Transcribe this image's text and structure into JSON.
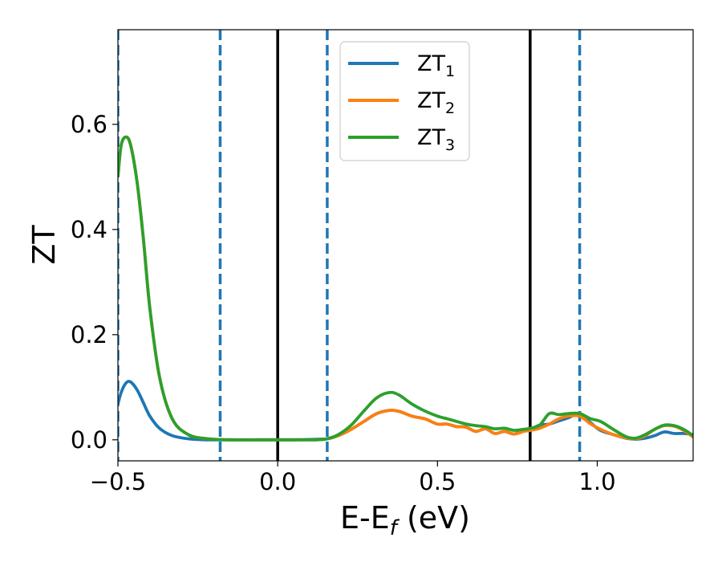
{
  "chart_data": {
    "type": "line",
    "xlabel": {
      "main": "E-E",
      "sub": "f",
      "unit": " (eV)"
    },
    "ylabel": "ZT",
    "xlim": [
      -0.5,
      1.3
    ],
    "ylim": [
      -0.04,
      0.78
    ],
    "xticks": [
      {
        "value": -0.5,
        "label": "−0.5"
      },
      {
        "value": 0.0,
        "label": "0.0"
      },
      {
        "value": 0.5,
        "label": "0.5"
      },
      {
        "value": 1.0,
        "label": "1.0"
      }
    ],
    "yticks": [
      {
        "value": 0.0,
        "label": "0.0"
      },
      {
        "value": 0.2,
        "label": "0.2"
      },
      {
        "value": 0.4,
        "label": "0.4"
      },
      {
        "value": 0.6,
        "label": "0.6"
      }
    ],
    "legend": {
      "placement": "upper-center"
    },
    "vlines_solid": [
      0.0,
      0.79
    ],
    "vlines_dashed": [
      -0.5,
      -0.18,
      0.155,
      0.945
    ],
    "series": [
      {
        "name": "ZT",
        "sub": "1",
        "color": "#1f77b4",
        "x": [
          -0.5,
          -0.49,
          -0.475,
          -0.46,
          -0.44,
          -0.42,
          -0.4,
          -0.37,
          -0.33,
          -0.28,
          -0.22,
          -0.15,
          -0.05,
          0.05,
          0.12,
          0.155,
          0.19,
          0.23,
          0.27,
          0.31,
          0.35,
          0.38,
          0.42,
          0.46,
          0.5,
          0.53,
          0.56,
          0.59,
          0.62,
          0.65,
          0.68,
          0.71,
          0.74,
          0.77,
          0.79,
          0.82,
          0.85,
          0.88,
          0.91,
          0.945,
          0.98,
          1.01,
          1.05,
          1.09,
          1.12,
          1.15,
          1.18,
          1.21,
          1.24,
          1.27,
          1.3
        ],
        "y": [
          0.068,
          0.09,
          0.108,
          0.11,
          0.095,
          0.07,
          0.045,
          0.022,
          0.008,
          0.002,
          0.0,
          0.0,
          0.0,
          0.0,
          0.001,
          0.002,
          0.008,
          0.02,
          0.035,
          0.05,
          0.056,
          0.054,
          0.045,
          0.04,
          0.03,
          0.03,
          0.025,
          0.024,
          0.016,
          0.021,
          0.012,
          0.016,
          0.011,
          0.019,
          0.02,
          0.028,
          0.03,
          0.036,
          0.042,
          0.05,
          0.032,
          0.018,
          0.01,
          0.003,
          0.001,
          0.003,
          0.008,
          0.015,
          0.012,
          0.012,
          0.01
        ]
      },
      {
        "name": "ZT",
        "sub": "2",
        "color": "#ff7f0e",
        "x": [
          -0.5,
          -0.49,
          -0.475,
          -0.46,
          -0.44,
          -0.42,
          -0.4,
          -0.37,
          -0.33,
          -0.28,
          -0.22,
          -0.15,
          -0.05,
          0.05,
          0.12,
          0.155,
          0.19,
          0.23,
          0.27,
          0.31,
          0.35,
          0.38,
          0.42,
          0.46,
          0.5,
          0.53,
          0.56,
          0.59,
          0.62,
          0.65,
          0.68,
          0.71,
          0.74,
          0.77,
          0.79,
          0.82,
          0.85,
          0.88,
          0.91,
          0.945,
          0.98,
          1.01,
          1.05,
          1.09,
          1.12,
          1.15,
          1.18,
          1.21,
          1.24,
          1.27,
          1.3
        ],
        "y": [
          0.5,
          0.56,
          0.576,
          0.56,
          0.49,
          0.38,
          0.25,
          0.12,
          0.04,
          0.01,
          0.002,
          0.0,
          0.0,
          0.0,
          0.0,
          0.002,
          0.008,
          0.02,
          0.035,
          0.05,
          0.056,
          0.054,
          0.045,
          0.04,
          0.03,
          0.03,
          0.025,
          0.024,
          0.016,
          0.021,
          0.012,
          0.016,
          0.011,
          0.016,
          0.018,
          0.022,
          0.03,
          0.04,
          0.045,
          0.045,
          0.03,
          0.02,
          0.01,
          0.004,
          0.002,
          0.008,
          0.02,
          0.027,
          0.026,
          0.018,
          0.005
        ]
      },
      {
        "name": "ZT",
        "sub": "3",
        "color": "#2ca02c",
        "x": [
          -0.5,
          -0.49,
          -0.475,
          -0.46,
          -0.44,
          -0.42,
          -0.4,
          -0.37,
          -0.33,
          -0.28,
          -0.22,
          -0.15,
          -0.05,
          0.05,
          0.12,
          0.155,
          0.19,
          0.23,
          0.27,
          0.31,
          0.35,
          0.38,
          0.42,
          0.46,
          0.5,
          0.53,
          0.56,
          0.59,
          0.62,
          0.65,
          0.68,
          0.71,
          0.74,
          0.77,
          0.79,
          0.82,
          0.85,
          0.88,
          0.91,
          0.945,
          0.98,
          1.01,
          1.05,
          1.09,
          1.12,
          1.15,
          1.18,
          1.21,
          1.24,
          1.27,
          1.3
        ],
        "y": [
          0.5,
          0.56,
          0.576,
          0.56,
          0.49,
          0.38,
          0.25,
          0.12,
          0.04,
          0.01,
          0.002,
          0.0,
          0.0,
          0.0,
          0.0,
          0.002,
          0.01,
          0.028,
          0.055,
          0.08,
          0.09,
          0.085,
          0.068,
          0.055,
          0.045,
          0.04,
          0.035,
          0.03,
          0.027,
          0.025,
          0.021,
          0.022,
          0.018,
          0.02,
          0.022,
          0.028,
          0.05,
          0.048,
          0.05,
          0.05,
          0.04,
          0.035,
          0.02,
          0.006,
          0.003,
          0.01,
          0.02,
          0.028,
          0.027,
          0.02,
          0.008
        ]
      }
    ]
  }
}
